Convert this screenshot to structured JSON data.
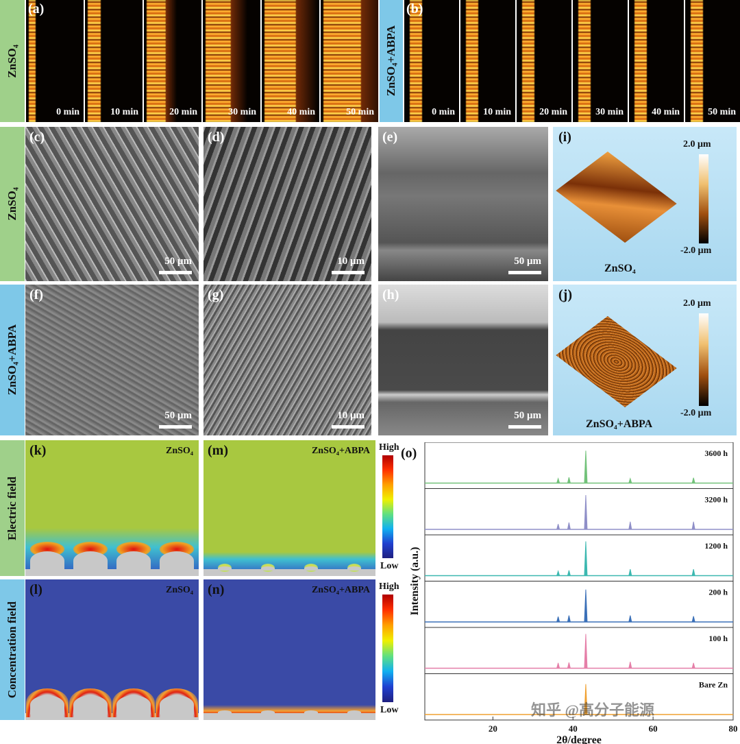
{
  "time_lapse": [
    {
      "row_label": "ZnSO₄",
      "panel": "(a)",
      "frames": [
        "0 min",
        "10 min",
        "20 min",
        "30 min",
        "40 min",
        "50 min"
      ]
    },
    {
      "row_label": "ZnSO₄+ABPA",
      "panel": "(b)",
      "frames": [
        "0 min",
        "10 min",
        "20 min",
        "30 min",
        "40 min",
        "50 min"
      ]
    }
  ],
  "sem_rows": [
    {
      "row_label": "ZnSO₄",
      "panels": [
        {
          "label": "(c)",
          "scale": "50 μm"
        },
        {
          "label": "(d)",
          "scale": "10 μm"
        },
        {
          "label": "(e)",
          "scale": "50 μm"
        }
      ],
      "afm": {
        "label": "(i)",
        "max": "2.0 μm",
        "min": "-2.0 μm",
        "caption": "ZnSO₄"
      }
    },
    {
      "row_label": "ZnSO₄+ABPA",
      "panels": [
        {
          "label": "(f)",
          "scale": "50 μm"
        },
        {
          "label": "(g)",
          "scale": "10 μm"
        },
        {
          "label": "(h)",
          "scale": "50 μm"
        }
      ],
      "afm": {
        "label": "(j)",
        "max": "2.0 μm",
        "min": "-2.0 μm",
        "caption": "ZnSO₄+ABPA"
      }
    }
  ],
  "simulation_rows": [
    {
      "row_label": "Electric field",
      "panels": [
        {
          "label": "(k)",
          "name": "ZnSO₄"
        },
        {
          "label": "(m)",
          "name": "ZnSO₄+ABPA"
        }
      ],
      "high": "High",
      "low": "Low"
    },
    {
      "row_label": "Concentration field",
      "panels": [
        {
          "label": "(l)",
          "name": "ZnSO₄"
        },
        {
          "label": "(n)",
          "name": "ZnSO₄+ABPA"
        }
      ],
      "high": "High",
      "low": "Low"
    }
  ],
  "xrd": {
    "label": "(o)",
    "y_label": "Intensity (a.u.)",
    "x_label": "2θ/degree",
    "xlim": [
      3,
      80
    ],
    "xticks": [
      20,
      40,
      60,
      80
    ],
    "peak_positions": [
      36.3,
      39.0,
      43.2,
      54.3,
      70.1
    ],
    "series": [
      {
        "name": "3600 h",
        "color": "#72c27a",
        "heights": [
          0.12,
          0.15,
          0.85,
          0.12,
          0.14
        ]
      },
      {
        "name": "3200 h",
        "color": "#8f8fc8",
        "heights": [
          0.14,
          0.18,
          0.9,
          0.2,
          0.2
        ]
      },
      {
        "name": "1200 h",
        "color": "#3cb8b0",
        "heights": [
          0.12,
          0.14,
          0.9,
          0.17,
          0.17
        ]
      },
      {
        "name": "200 h",
        "color": "#3b70b8",
        "heights": [
          0.14,
          0.17,
          0.85,
          0.17,
          0.15
        ]
      },
      {
        "name": "100 h",
        "color": "#e57fa8",
        "heights": [
          0.14,
          0.15,
          0.9,
          0.17,
          0.14
        ]
      },
      {
        "name": "Bare Zn",
        "color": "#f0a030",
        "heights": [
          0,
          0,
          0.8,
          0,
          0
        ]
      }
    ]
  },
  "watermark": "知乎 @高分子能源"
}
